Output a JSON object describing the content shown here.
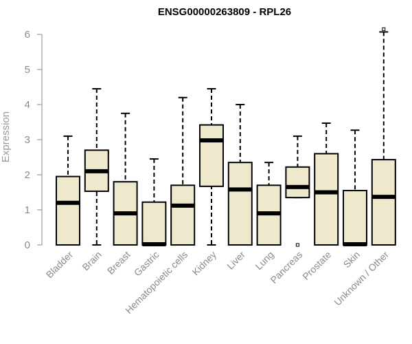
{
  "chart_data": {
    "type": "box",
    "title": "ENSG00000263809 - RPL26",
    "ylabel": "Expression",
    "xlabel": "",
    "ylim": [
      0,
      6.2
    ],
    "yticks": [
      0,
      1,
      2,
      3,
      4,
      5,
      6
    ],
    "categories": [
      "Bladder",
      "Brain",
      "Breast",
      "Gastric",
      "Hematopoietic cells",
      "Kidney",
      "Liver",
      "Lung",
      "Pancreas",
      "Prostate",
      "Skin",
      "Unknown / Other"
    ],
    "boxes": [
      {
        "whisker_low": 0,
        "q1": 0,
        "median": 1.2,
        "q3": 1.95,
        "whisker_high": 3.1,
        "outliers": []
      },
      {
        "whisker_low": 0,
        "q1": 1.53,
        "median": 2.1,
        "q3": 2.7,
        "whisker_high": 4.45,
        "outliers": []
      },
      {
        "whisker_low": 0,
        "q1": 0,
        "median": 0.9,
        "q3": 1.8,
        "whisker_high": 3.75,
        "outliers": []
      },
      {
        "whisker_low": 0,
        "q1": 0,
        "median": 0.02,
        "q3": 1.22,
        "whisker_high": 2.45,
        "outliers": []
      },
      {
        "whisker_low": 0,
        "q1": 0,
        "median": 1.12,
        "q3": 1.7,
        "whisker_high": 4.2,
        "outliers": []
      },
      {
        "whisker_low": 0,
        "q1": 1.67,
        "median": 2.98,
        "q3": 3.42,
        "whisker_high": 4.45,
        "outliers": []
      },
      {
        "whisker_low": 0,
        "q1": 0,
        "median": 1.58,
        "q3": 2.35,
        "whisker_high": 4.0,
        "outliers": []
      },
      {
        "whisker_low": 0,
        "q1": 0,
        "median": 0.9,
        "q3": 1.7,
        "whisker_high": 2.35,
        "outliers": []
      },
      {
        "whisker_low": 1.35,
        "q1": 1.35,
        "median": 1.65,
        "q3": 2.22,
        "whisker_high": 3.1,
        "outliers": [
          0
        ]
      },
      {
        "whisker_low": 0,
        "q1": 0,
        "median": 1.5,
        "q3": 2.6,
        "whisker_high": 3.47,
        "outliers": []
      },
      {
        "whisker_low": 0,
        "q1": 0,
        "median": 0.02,
        "q3": 1.55,
        "whisker_high": 3.27,
        "outliers": []
      },
      {
        "whisker_low": 0,
        "q1": 0,
        "median": 1.37,
        "q3": 2.43,
        "whisker_high": 6.07,
        "outliers": [
          6.15
        ]
      }
    ],
    "colors": {
      "box_fill": "#EEE8CD",
      "box_stroke": "#000000",
      "axis": "#8a8a8a",
      "median": "#000000"
    },
    "grid": false,
    "legend": "none"
  }
}
